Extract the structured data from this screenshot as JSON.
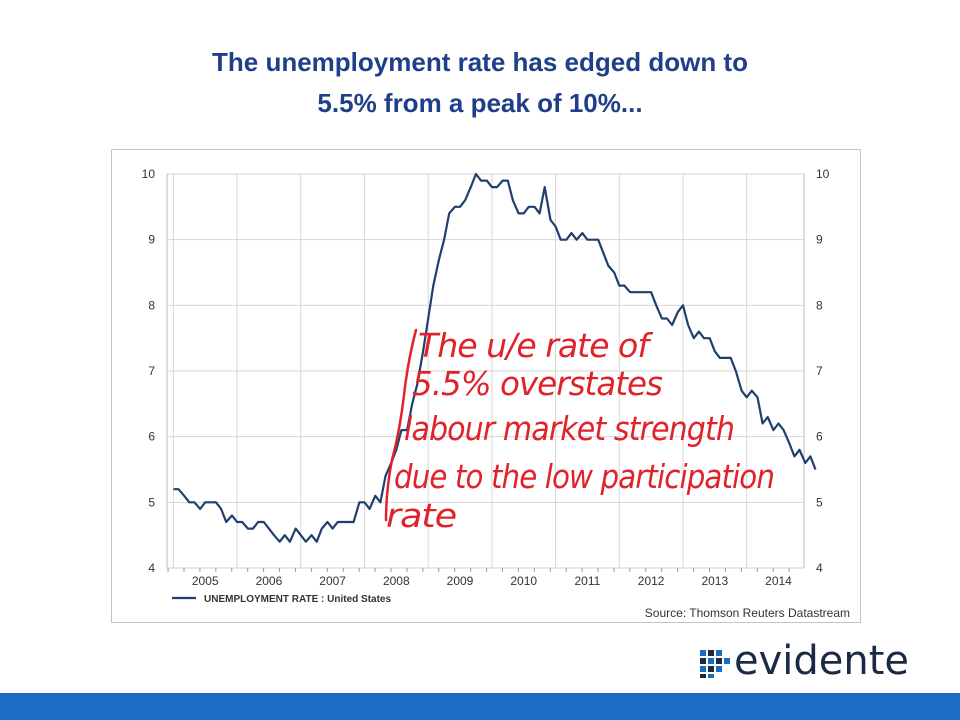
{
  "slide": {
    "title_line1": "The unemployment rate has edged down to",
    "title_line2": "5.5% from a peak of 10%..."
  },
  "annotation": {
    "lines": [
      "The u/e rate of",
      "5.5% overstates",
      "labour market strength",
      "due to the low participation",
      "rate"
    ],
    "color": "#e0222a"
  },
  "logo": {
    "text": "evidente",
    "color": "#1a2a44",
    "accent": "#1b6cc4"
  },
  "colors": {
    "title": "#1f3f8a",
    "series": "#1f3f6e",
    "footer": "#1b6cc4"
  },
  "chart_data": {
    "type": "line",
    "title": "",
    "xlabel": "",
    "ylabel": "",
    "x_tick_labels": [
      "2005",
      "2006",
      "2007",
      "2008",
      "2009",
      "2010",
      "2011",
      "2012",
      "2013",
      "2014"
    ],
    "y_ticks": [
      4,
      5,
      6,
      7,
      8,
      9,
      10
    ],
    "ylim": [
      4,
      10
    ],
    "xlim": [
      2004.9,
      2014.9
    ],
    "grid": true,
    "right_axis": true,
    "legend_position": "bottom-left",
    "source": "Source: Thomson Reuters Datastream",
    "series": [
      {
        "name": "UNEMPLOYMENT RATE : United States",
        "points": [
          [
            2005.0,
            5.2
          ],
          [
            2005.08,
            5.2
          ],
          [
            2005.17,
            5.1
          ],
          [
            2005.25,
            5.0
          ],
          [
            2005.33,
            5.0
          ],
          [
            2005.42,
            4.9
          ],
          [
            2005.5,
            5.0
          ],
          [
            2005.58,
            5.0
          ],
          [
            2005.67,
            5.0
          ],
          [
            2005.75,
            4.9
          ],
          [
            2005.83,
            4.7
          ],
          [
            2005.92,
            4.8
          ],
          [
            2006.0,
            4.7
          ],
          [
            2006.08,
            4.7
          ],
          [
            2006.17,
            4.6
          ],
          [
            2006.25,
            4.6
          ],
          [
            2006.33,
            4.7
          ],
          [
            2006.42,
            4.7
          ],
          [
            2006.5,
            4.6
          ],
          [
            2006.58,
            4.5
          ],
          [
            2006.67,
            4.4
          ],
          [
            2006.75,
            4.5
          ],
          [
            2006.83,
            4.4
          ],
          [
            2006.92,
            4.6
          ],
          [
            2007.0,
            4.5
          ],
          [
            2007.08,
            4.4
          ],
          [
            2007.17,
            4.5
          ],
          [
            2007.25,
            4.4
          ],
          [
            2007.33,
            4.6
          ],
          [
            2007.42,
            4.7
          ],
          [
            2007.5,
            4.6
          ],
          [
            2007.58,
            4.7
          ],
          [
            2007.67,
            4.7
          ],
          [
            2007.75,
            4.7
          ],
          [
            2007.83,
            4.7
          ],
          [
            2007.92,
            5.0
          ],
          [
            2008.0,
            5.0
          ],
          [
            2008.08,
            4.9
          ],
          [
            2008.17,
            5.1
          ],
          [
            2008.25,
            5.0
          ],
          [
            2008.33,
            5.4
          ],
          [
            2008.42,
            5.6
          ],
          [
            2008.5,
            5.8
          ],
          [
            2008.58,
            6.1
          ],
          [
            2008.67,
            6.1
          ],
          [
            2008.75,
            6.5
          ],
          [
            2008.83,
            6.8
          ],
          [
            2008.92,
            7.3
          ],
          [
            2009.0,
            7.8
          ],
          [
            2009.08,
            8.3
          ],
          [
            2009.17,
            8.7
          ],
          [
            2009.25,
            9.0
          ],
          [
            2009.33,
            9.4
          ],
          [
            2009.42,
            9.5
          ],
          [
            2009.5,
            9.5
          ],
          [
            2009.58,
            9.6
          ],
          [
            2009.67,
            9.8
          ],
          [
            2009.75,
            10.0
          ],
          [
            2009.83,
            9.9
          ],
          [
            2009.92,
            9.9
          ],
          [
            2010.0,
            9.8
          ],
          [
            2010.08,
            9.8
          ],
          [
            2010.17,
            9.9
          ],
          [
            2010.25,
            9.9
          ],
          [
            2010.33,
            9.6
          ],
          [
            2010.42,
            9.4
          ],
          [
            2010.5,
            9.4
          ],
          [
            2010.58,
            9.5
          ],
          [
            2010.67,
            9.5
          ],
          [
            2010.75,
            9.4
          ],
          [
            2010.83,
            9.8
          ],
          [
            2010.92,
            9.3
          ],
          [
            2011.0,
            9.2
          ],
          [
            2011.08,
            9.0
          ],
          [
            2011.17,
            9.0
          ],
          [
            2011.25,
            9.1
          ],
          [
            2011.33,
            9.0
          ],
          [
            2011.42,
            9.1
          ],
          [
            2011.5,
            9.0
          ],
          [
            2011.58,
            9.0
          ],
          [
            2011.67,
            9.0
          ],
          [
            2011.75,
            8.8
          ],
          [
            2011.83,
            8.6
          ],
          [
            2011.92,
            8.5
          ],
          [
            2012.0,
            8.3
          ],
          [
            2012.08,
            8.3
          ],
          [
            2012.17,
            8.2
          ],
          [
            2012.25,
            8.2
          ],
          [
            2012.33,
            8.2
          ],
          [
            2012.42,
            8.2
          ],
          [
            2012.5,
            8.2
          ],
          [
            2012.58,
            8.0
          ],
          [
            2012.67,
            7.8
          ],
          [
            2012.75,
            7.8
          ],
          [
            2012.83,
            7.7
          ],
          [
            2012.92,
            7.9
          ],
          [
            2013.0,
            8.0
          ],
          [
            2013.08,
            7.7
          ],
          [
            2013.17,
            7.5
          ],
          [
            2013.25,
            7.6
          ],
          [
            2013.33,
            7.5
          ],
          [
            2013.42,
            7.5
          ],
          [
            2013.5,
            7.3
          ],
          [
            2013.58,
            7.2
          ],
          [
            2013.67,
            7.2
          ],
          [
            2013.75,
            7.2
          ],
          [
            2013.83,
            7.0
          ],
          [
            2013.92,
            6.7
          ],
          [
            2014.0,
            6.6
          ],
          [
            2014.08,
            6.7
          ],
          [
            2014.17,
            6.6
          ],
          [
            2014.25,
            6.2
          ],
          [
            2014.33,
            6.3
          ],
          [
            2014.42,
            6.1
          ],
          [
            2014.5,
            6.2
          ],
          [
            2014.58,
            6.1
          ],
          [
            2014.67,
            5.9
          ],
          [
            2014.75,
            5.7
          ],
          [
            2014.83,
            5.8
          ],
          [
            2014.92,
            5.6
          ],
          [
            2015.0,
            5.7
          ],
          [
            2015.08,
            5.5
          ]
        ]
      }
    ]
  }
}
